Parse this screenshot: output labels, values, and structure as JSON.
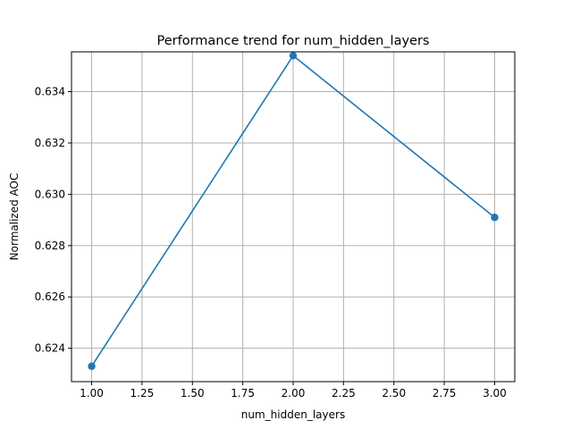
{
  "chart_data": {
    "type": "line",
    "title": "Performance trend for num_hidden_layers",
    "xlabel": "num_hidden_layers",
    "ylabel": "Normalized AOC",
    "xlim": [
      0.9,
      3.1
    ],
    "ylim": [
      0.6227,
      0.63555
    ],
    "xticks": [
      1.0,
      1.25,
      1.5,
      1.75,
      2.0,
      2.25,
      2.5,
      2.75,
      3.0
    ],
    "xtick_labels": [
      "1.00",
      "1.25",
      "1.50",
      "1.75",
      "2.00",
      "2.25",
      "2.50",
      "2.75",
      "3.00"
    ],
    "yticks": [
      0.624,
      0.626,
      0.628,
      0.63,
      0.632,
      0.634
    ],
    "ytick_labels": [
      "0.624",
      "0.626",
      "0.628",
      "0.630",
      "0.632",
      "0.634"
    ],
    "grid": true,
    "series": [
      {
        "x": [
          1.0,
          2.0,
          3.0
        ],
        "values": [
          0.6233,
          0.6354,
          0.6291
        ],
        "color": "#1f77b4",
        "marker": "circle"
      }
    ]
  }
}
